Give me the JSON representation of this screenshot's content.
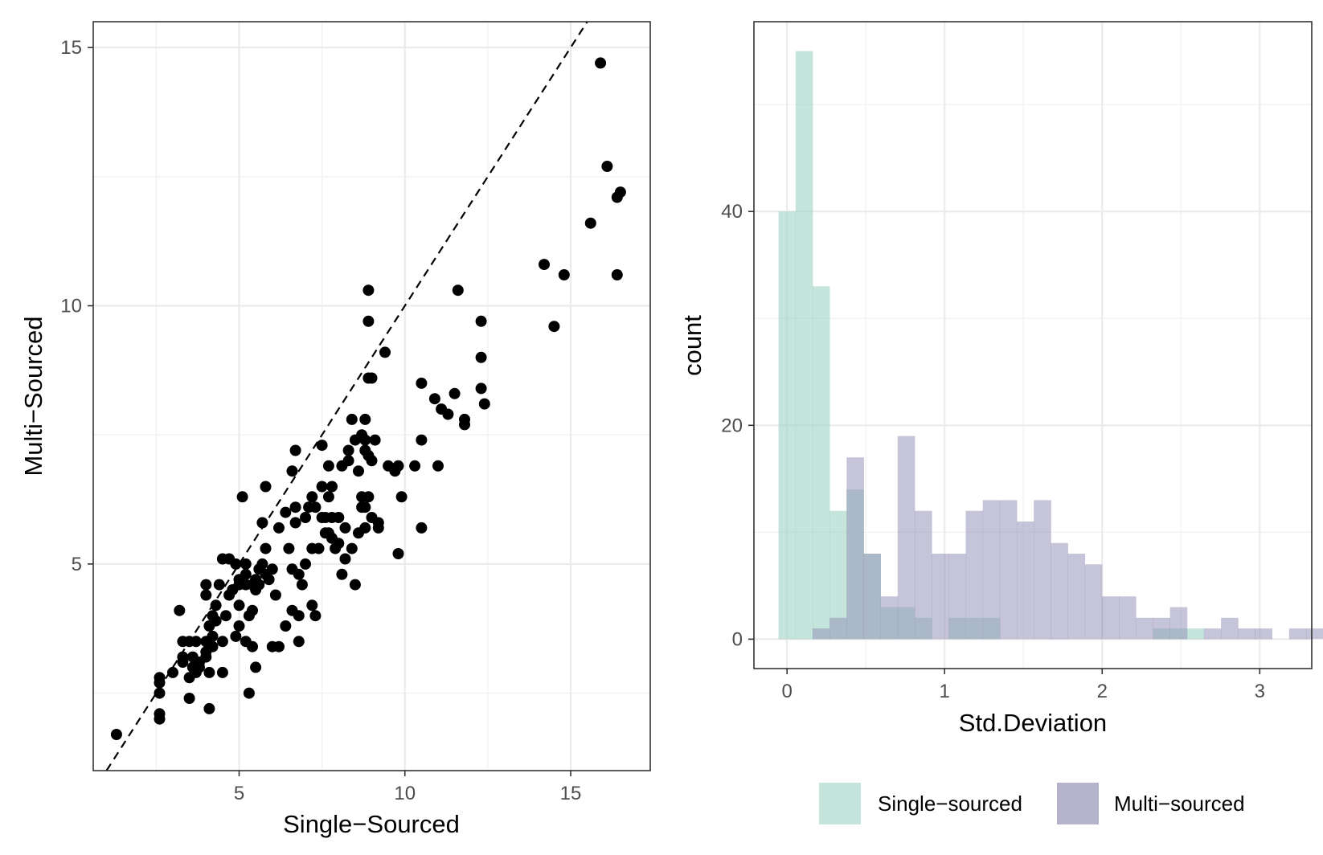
{
  "chart_data": [
    {
      "type": "scatter",
      "xlabel": "Single−Sourced",
      "ylabel": "Multi−Sourced",
      "xlim": [
        0.6,
        17.4
      ],
      "ylim": [
        1.0,
        15.5
      ],
      "xticks": [
        5,
        10,
        15
      ],
      "yticks": [
        5,
        10,
        15
      ],
      "xtick_labels": [
        "5",
        "10",
        "15"
      ],
      "ytick_labels": [
        "5",
        "10",
        "15"
      ],
      "reference_line": {
        "style": "dashed",
        "slope": 1,
        "intercept": 0
      },
      "grid": true,
      "point_color": "#000000",
      "points": [
        [
          1.3,
          1.7
        ],
        [
          2.6,
          2.7
        ],
        [
          2.6,
          2.8
        ],
        [
          2.6,
          2.5
        ],
        [
          2.6,
          2.1
        ],
        [
          2.6,
          2.0
        ],
        [
          3.0,
          2.9
        ],
        [
          3.2,
          4.1
        ],
        [
          3.3,
          3.1
        ],
        [
          3.3,
          3.2
        ],
        [
          3.3,
          3.5
        ],
        [
          3.5,
          2.8
        ],
        [
          3.5,
          3.5
        ],
        [
          3.5,
          2.4
        ],
        [
          3.6,
          3.0
        ],
        [
          3.6,
          3.2
        ],
        [
          3.7,
          3.5
        ],
        [
          3.7,
          2.9
        ],
        [
          3.8,
          3.0
        ],
        [
          3.8,
          3.1
        ],
        [
          4.0,
          3.2
        ],
        [
          4.0,
          3.3
        ],
        [
          4.0,
          3.5
        ],
        [
          4.0,
          4.4
        ],
        [
          4.0,
          4.6
        ],
        [
          4.1,
          3.8
        ],
        [
          4.1,
          2.2
        ],
        [
          4.1,
          2.9
        ],
        [
          4.2,
          3.4
        ],
        [
          4.2,
          3.6
        ],
        [
          4.2,
          4.0
        ],
        [
          4.3,
          4.2
        ],
        [
          4.3,
          3.9
        ],
        [
          4.4,
          4.6
        ],
        [
          4.5,
          3.5
        ],
        [
          4.5,
          2.9
        ],
        [
          4.5,
          5.1
        ],
        [
          4.6,
          4.0
        ],
        [
          4.7,
          5.1
        ],
        [
          4.7,
          4.4
        ],
        [
          4.8,
          4.5
        ],
        [
          4.9,
          3.6
        ],
        [
          4.9,
          5.0
        ],
        [
          5.0,
          3.8
        ],
        [
          5.0,
          4.2
        ],
        [
          5.0,
          4.6
        ],
        [
          5.0,
          4.7
        ],
        [
          5.1,
          6.3
        ],
        [
          5.2,
          5.0
        ],
        [
          5.2,
          4.8
        ],
        [
          5.2,
          4.6
        ],
        [
          5.2,
          3.5
        ],
        [
          5.3,
          2.5
        ],
        [
          5.3,
          4.0
        ],
        [
          5.4,
          3.4
        ],
        [
          5.4,
          4.6
        ],
        [
          5.4,
          4.1
        ],
        [
          5.5,
          4.5
        ],
        [
          5.5,
          4.7
        ],
        [
          5.5,
          3.0
        ],
        [
          5.6,
          4.9
        ],
        [
          5.6,
          4.6
        ],
        [
          5.7,
          5.0
        ],
        [
          5.7,
          5.8
        ],
        [
          5.8,
          4.8
        ],
        [
          5.8,
          5.3
        ],
        [
          5.8,
          6.5
        ],
        [
          5.9,
          4.7
        ],
        [
          6.0,
          3.4
        ],
        [
          6.0,
          4.9
        ],
        [
          6.1,
          4.4
        ],
        [
          6.2,
          5.7
        ],
        [
          6.2,
          3.4
        ],
        [
          6.4,
          6.0
        ],
        [
          6.4,
          3.8
        ],
        [
          6.5,
          5.3
        ],
        [
          6.6,
          4.1
        ],
        [
          6.6,
          4.9
        ],
        [
          6.6,
          6.8
        ],
        [
          6.7,
          6.1
        ],
        [
          6.7,
          7.2
        ],
        [
          6.7,
          5.8
        ],
        [
          6.8,
          3.5
        ],
        [
          6.8,
          4.0
        ],
        [
          6.8,
          4.8
        ],
        [
          6.9,
          4.6
        ],
        [
          7.0,
          5.9
        ],
        [
          7.0,
          5.0
        ],
        [
          7.1,
          6.1
        ],
        [
          7.2,
          5.3
        ],
        [
          7.2,
          6.3
        ],
        [
          7.2,
          4.2
        ],
        [
          7.3,
          6.1
        ],
        [
          7.3,
          4.0
        ],
        [
          7.4,
          5.3
        ],
        [
          7.5,
          6.5
        ],
        [
          7.5,
          7.3
        ],
        [
          7.5,
          5.9
        ],
        [
          7.6,
          5.6
        ],
        [
          7.6,
          5.9
        ],
        [
          7.7,
          5.6
        ],
        [
          7.7,
          6.3
        ],
        [
          7.7,
          6.9
        ],
        [
          7.8,
          6.5
        ],
        [
          7.8,
          5.5
        ],
        [
          7.8,
          5.9
        ],
        [
          7.9,
          5.3
        ],
        [
          8.0,
          5.4
        ],
        [
          8.0,
          5.9
        ],
        [
          8.1,
          4.8
        ],
        [
          8.1,
          6.9
        ],
        [
          8.2,
          5.7
        ],
        [
          8.2,
          5.1
        ],
        [
          8.3,
          7.0
        ],
        [
          8.3,
          7.2
        ],
        [
          8.4,
          5.3
        ],
        [
          8.4,
          7.8
        ],
        [
          8.5,
          4.6
        ],
        [
          8.5,
          7.4
        ],
        [
          8.6,
          5.6
        ],
        [
          8.6,
          6.8
        ],
        [
          8.7,
          6.1
        ],
        [
          8.7,
          6.3
        ],
        [
          8.7,
          7.5
        ],
        [
          8.8,
          5.7
        ],
        [
          8.8,
          6.1
        ],
        [
          8.8,
          7.2
        ],
        [
          8.8,
          7.4
        ],
        [
          8.8,
          7.8
        ],
        [
          8.9,
          6.3
        ],
        [
          8.9,
          7.1
        ],
        [
          8.9,
          8.6
        ],
        [
          8.9,
          9.7
        ],
        [
          8.9,
          10.3
        ],
        [
          9.0,
          5.9
        ],
        [
          9.0,
          8.6
        ],
        [
          9.0,
          7.0
        ],
        [
          9.1,
          7.4
        ],
        [
          9.2,
          5.7
        ],
        [
          9.2,
          5.8
        ],
        [
          9.4,
          9.1
        ],
        [
          9.5,
          6.9
        ],
        [
          9.7,
          6.8
        ],
        [
          9.8,
          5.2
        ],
        [
          9.8,
          6.9
        ],
        [
          9.9,
          6.3
        ],
        [
          10.3,
          6.9
        ],
        [
          10.5,
          8.5
        ],
        [
          10.5,
          5.7
        ],
        [
          10.5,
          7.4
        ],
        [
          10.9,
          8.2
        ],
        [
          11.0,
          6.9
        ],
        [
          11.1,
          8.0
        ],
        [
          11.3,
          7.9
        ],
        [
          11.5,
          8.3
        ],
        [
          11.6,
          10.3
        ],
        [
          11.8,
          7.7
        ],
        [
          11.8,
          7.8
        ],
        [
          12.3,
          8.4
        ],
        [
          12.3,
          9.0
        ],
        [
          12.3,
          9.7
        ],
        [
          12.4,
          8.1
        ],
        [
          14.2,
          10.8
        ],
        [
          14.5,
          9.6
        ],
        [
          14.8,
          10.6
        ],
        [
          15.6,
          11.6
        ],
        [
          15.9,
          14.7
        ],
        [
          16.1,
          12.7
        ],
        [
          16.4,
          10.6
        ],
        [
          16.4,
          12.1
        ],
        [
          16.5,
          12.2
        ]
      ]
    },
    {
      "type": "histogram",
      "xlabel": "Std.Deviation",
      "ylabel": "count",
      "xlim": [
        -0.21,
        3.33
      ],
      "ylim": [
        -2.75,
        57.75
      ],
      "xticks": [
        0,
        1,
        2,
        3
      ],
      "yticks": [
        0,
        20,
        40
      ],
      "xtick_labels": [
        "0",
        "1",
        "2",
        "3"
      ],
      "ytick_labels": [
        "0",
        "20",
        "40"
      ],
      "bin_width": 0.108,
      "first_bin_start": -0.054,
      "grid": true,
      "series": [
        {
          "name": "Single−sourced",
          "color": "#94cdbf",
          "counts": [
            40,
            55,
            33,
            12,
            14,
            8,
            3,
            3,
            2,
            0,
            2,
            2,
            2,
            0,
            0,
            0,
            0,
            0,
            0,
            0,
            0,
            0,
            1,
            1,
            1,
            0,
            0,
            0,
            0,
            0
          ]
        },
        {
          "name": "Multi−sourced",
          "color": "#9794b8",
          "counts": [
            0,
            0,
            1,
            2,
            17,
            8,
            4,
            19,
            12,
            8,
            8,
            12,
            13,
            13,
            11,
            13,
            9,
            8,
            7,
            4,
            4,
            2,
            2,
            3,
            0,
            1,
            2,
            1,
            1,
            0,
            1,
            1
          ]
        }
      ],
      "legend": {
        "position": "bottom",
        "entries": [
          "Single−sourced",
          "Multi−sourced"
        ]
      }
    }
  ]
}
